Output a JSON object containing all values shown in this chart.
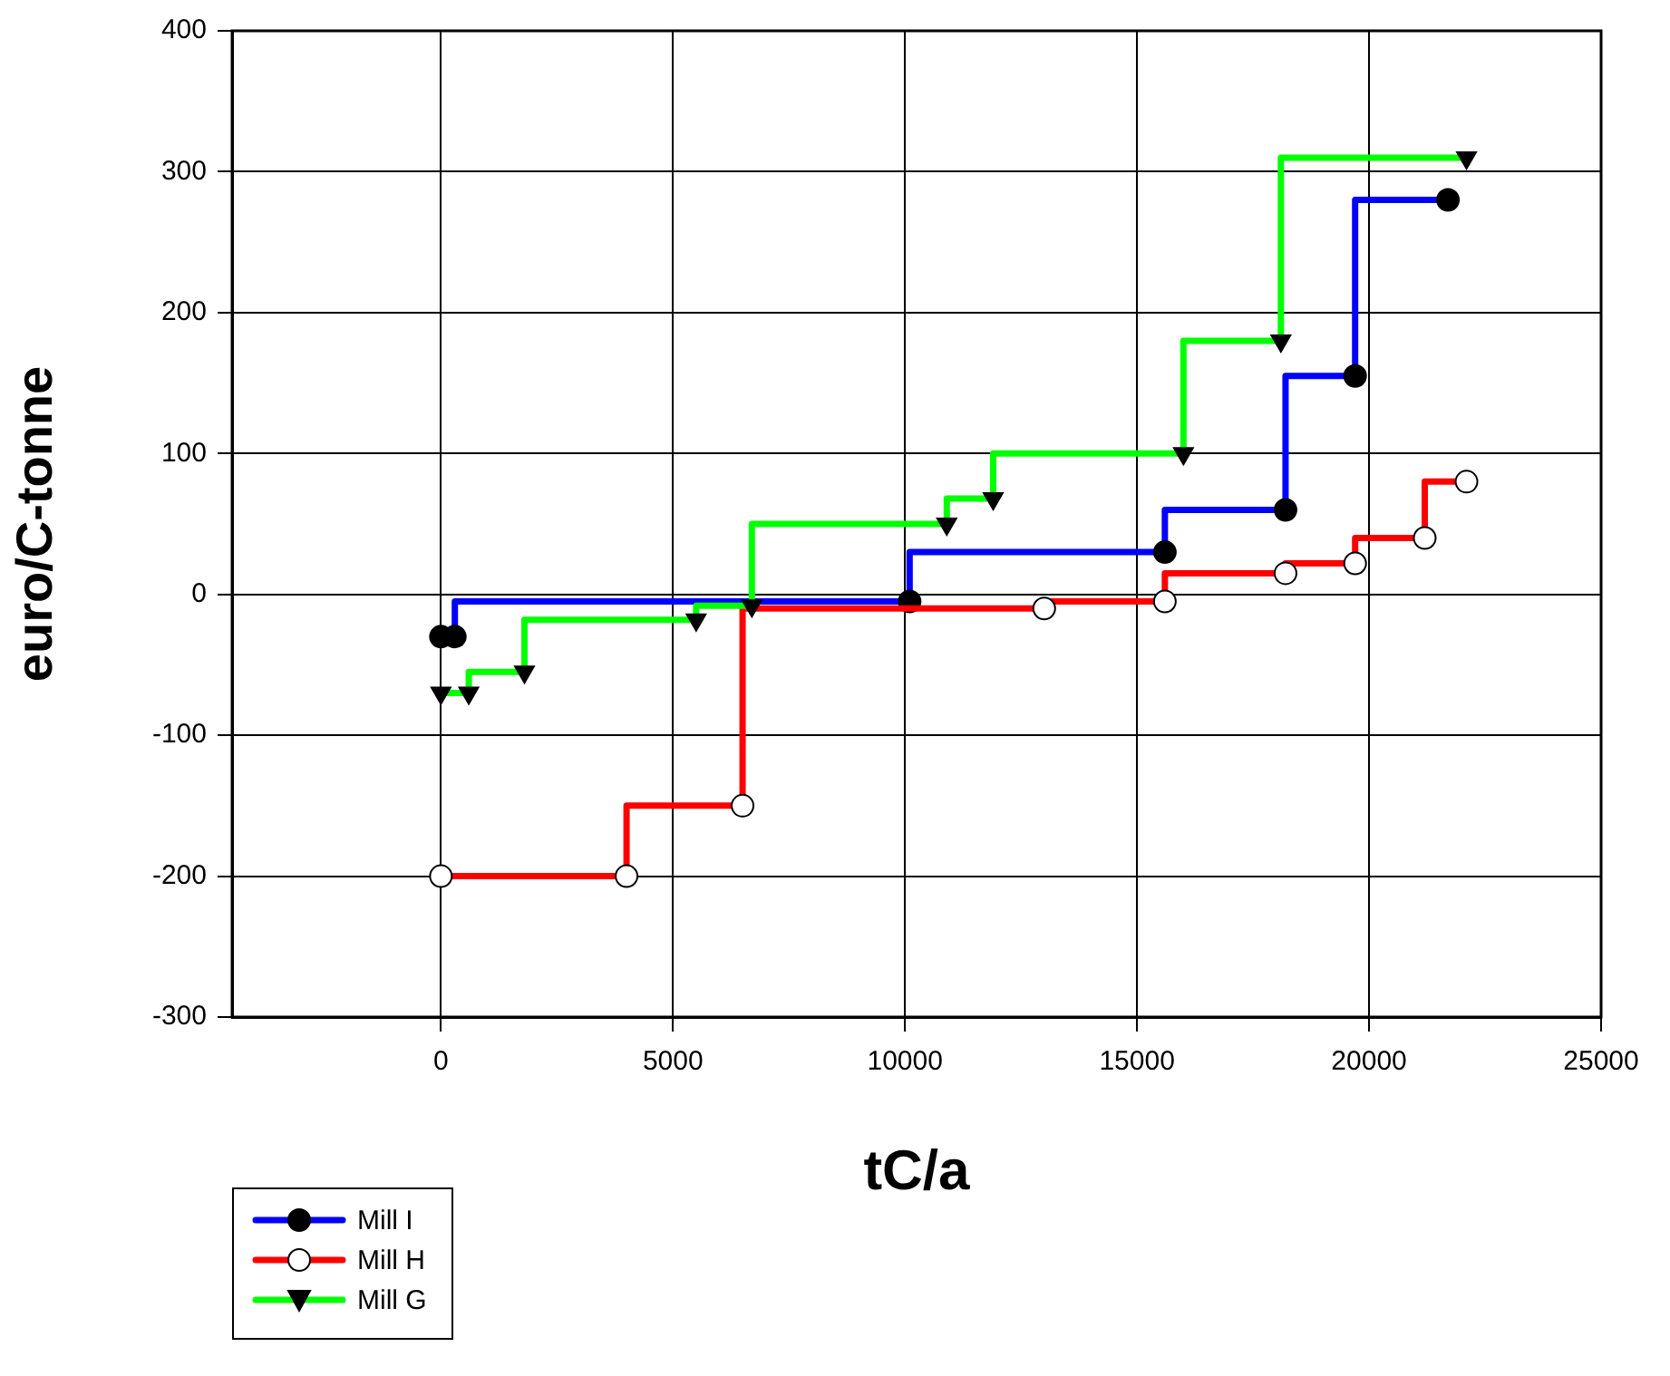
{
  "chart_data": {
    "type": "step",
    "xlabel": "tC/a",
    "ylabel": "euro/C-tonne",
    "xlim": [
      -4500,
      25000
    ],
    "xticks": [
      0,
      5000,
      10000,
      15000,
      20000,
      25000
    ],
    "ylim": [
      -300,
      400
    ],
    "yticks": [
      -300,
      -200,
      -100,
      0,
      100,
      200,
      300,
      400
    ],
    "grid": true,
    "legend": "bottom left",
    "series": [
      {
        "name": "Mill I",
        "color": "#0000ff",
        "marker": "circle",
        "colors": [
          "#000000",
          "#000000",
          "#000000",
          "#000000",
          "#000000",
          "#000000",
          "#000000"
        ],
        "x": [
          0,
          300,
          10100,
          15600,
          18200,
          19700,
          21700
        ],
        "values": [
          -30,
          -30,
          -5,
          30,
          60,
          155,
          280
        ]
      },
      {
        "name": "Mill H",
        "color": "#ff0000",
        "marker": "circle",
        "colors": [
          "#ffffff",
          "#ffffff",
          "#ffffff",
          "#ffffff",
          "#ffffff",
          "#ffffff",
          "#ffffff",
          "#ffffff",
          "#ffffff"
        ],
        "x": [
          0,
          4000,
          6500,
          13000,
          15600,
          18200,
          19700,
          21200,
          22100
        ],
        "values": [
          -200,
          -200,
          -150,
          -10,
          -5,
          15,
          22,
          40,
          80
        ]
      },
      {
        "name": "Mill G",
        "color": "#00ff00",
        "marker": "triangle",
        "colors": [
          "#000000",
          "#000000",
          "#000000",
          "#000000",
          "#000000",
          "#000000",
          "#000000",
          "#000000",
          "#000000",
          "#000000"
        ],
        "x": [
          0,
          600,
          1800,
          5500,
          6700,
          10900,
          11900,
          16000,
          18100,
          22100
        ],
        "values": [
          -70,
          -70,
          -55,
          -18,
          -8,
          50,
          68,
          100,
          180,
          310
        ]
      }
    ]
  }
}
